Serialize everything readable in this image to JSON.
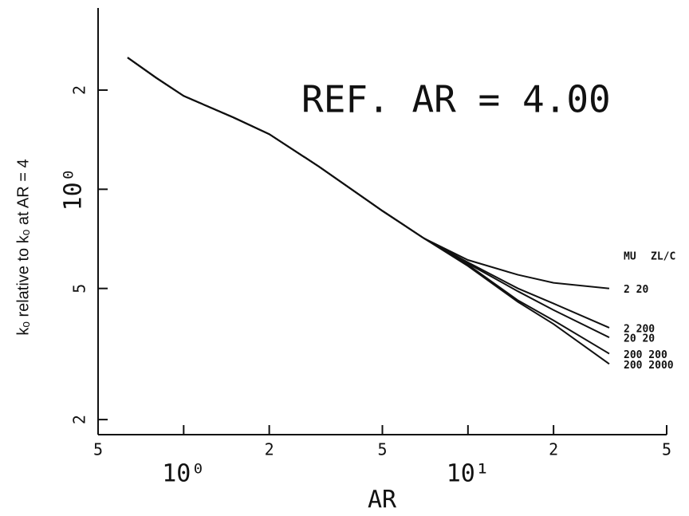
{
  "chart_data": {
    "type": "line",
    "log_x": true,
    "log_y": true,
    "annotation": "REF. AR = 4.00",
    "x_label": "AR",
    "y_label": "kₒ relative to kₒ at AR = 4",
    "legend_header": [
      "MU",
      "ZL/C"
    ],
    "x": [
      0.635,
      0.8,
      1,
      1.5,
      2,
      3,
      5,
      7,
      10,
      15,
      20,
      31.4
    ],
    "series": [
      {
        "name": "2 20",
        "color": "#111111",
        "values": [
          2.51,
          2.18,
          1.92,
          1.65,
          1.47,
          1.17,
          0.86,
          0.71,
          0.61,
          0.55,
          0.52,
          0.5
        ]
      },
      {
        "name": "2 200",
        "color": "#111111",
        "values": [
          2.51,
          2.18,
          1.92,
          1.65,
          1.47,
          1.17,
          0.86,
          0.71,
          0.6,
          0.5,
          0.45,
          0.38
        ]
      },
      {
        "name": "20 20",
        "color": "#111111",
        "values": [
          2.51,
          2.18,
          1.92,
          1.65,
          1.47,
          1.17,
          0.86,
          0.71,
          0.595,
          0.49,
          0.43,
          0.355
        ]
      },
      {
        "name": "200 200",
        "color": "#111111",
        "values": [
          2.51,
          2.18,
          1.92,
          1.65,
          1.47,
          1.17,
          0.86,
          0.71,
          0.59,
          0.46,
          0.4,
          0.317
        ]
      },
      {
        "name": "200 2000",
        "color": "#111111",
        "values": [
          2.51,
          2.18,
          1.92,
          1.65,
          1.47,
          1.17,
          0.86,
          0.71,
          0.585,
          0.455,
          0.39,
          0.295
        ]
      }
    ],
    "xlim": [
      0.5,
      50
    ],
    "xticks": [
      {
        "value": 0.5,
        "label": "5"
      },
      {
        "value": 1,
        "label": "10⁰"
      },
      2,
      5,
      {
        "value": 10,
        "label": "10¹"
      },
      {
        "value": 20,
        "label": "2"
      },
      {
        "value": 50,
        "label": "5"
      }
    ],
    "ylim": [
      0.18,
      3.55
    ],
    "yticks": [
      {
        "value": 0.2,
        "label": "2"
      },
      {
        "value": 0.5,
        "label": "5"
      },
      {
        "value": 1,
        "label": "10⁰"
      },
      2
    ]
  }
}
